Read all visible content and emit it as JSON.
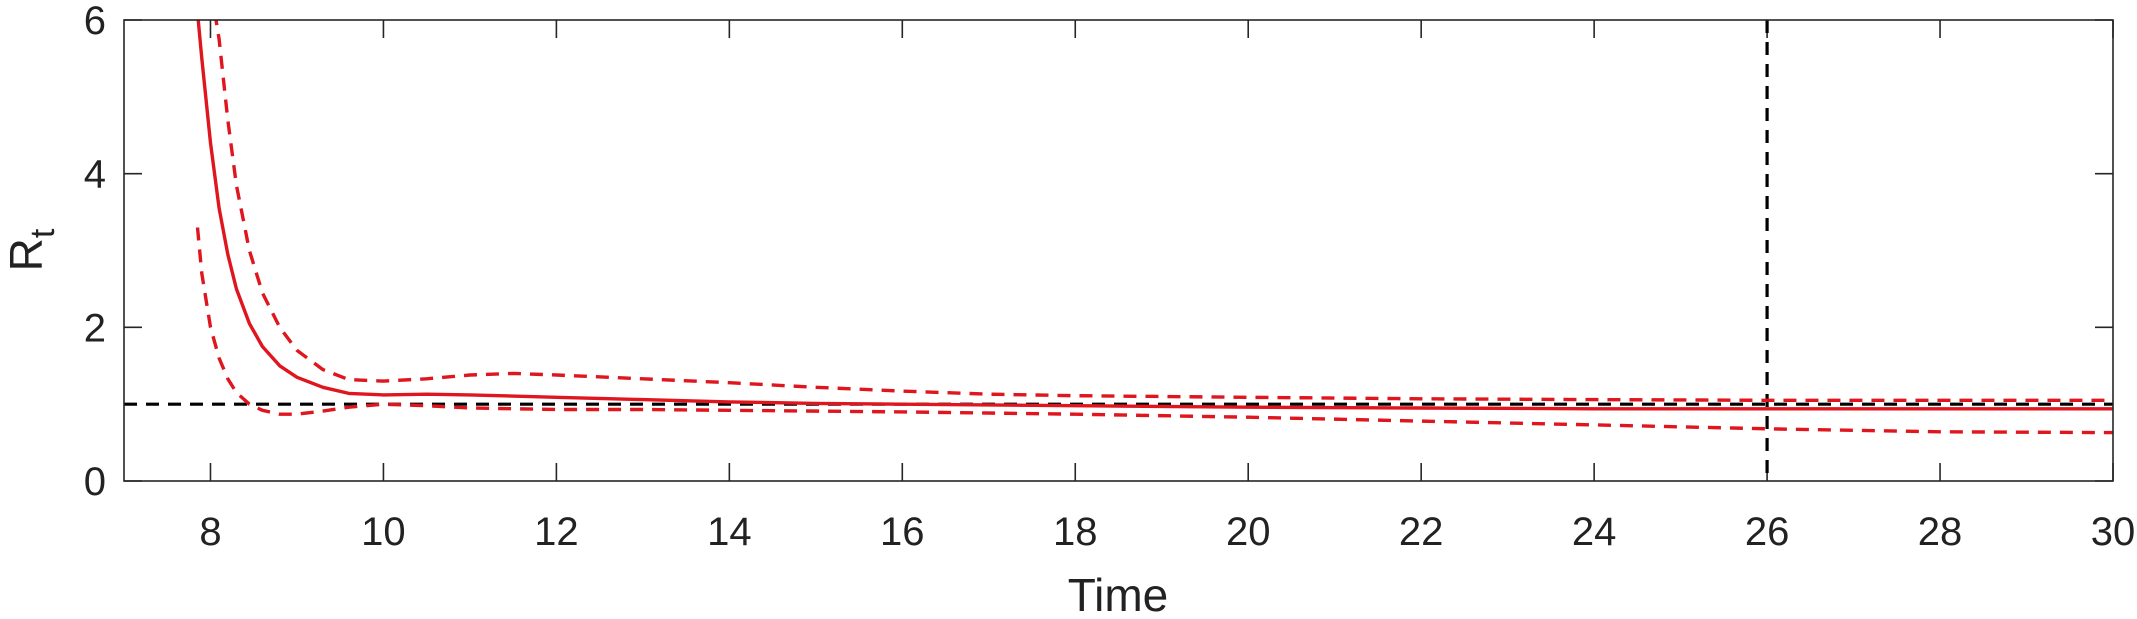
{
  "chart_data": {
    "type": "line",
    "xlabel": "Time",
    "ylabel": "R",
    "ylabel_subscript": "t",
    "xlim": [
      7,
      30
    ],
    "ylim": [
      0,
      6
    ],
    "x_ticks": [
      "8",
      "10",
      "12",
      "14",
      "16",
      "18",
      "20",
      "22",
      "24",
      "26",
      "28",
      "30"
    ],
    "y_ticks": [
      "0",
      "2",
      "4",
      "6"
    ],
    "grid": false,
    "series": [
      {
        "style": "solid",
        "color": "#e0161e",
        "x": [
          7.85,
          7.9,
          8.0,
          8.1,
          8.2,
          8.3,
          8.45,
          8.6,
          8.8,
          9.0,
          9.3,
          9.6,
          10.0,
          10.5,
          11.0,
          12.0,
          13.0,
          14.0,
          15.0,
          16.0,
          18.0,
          20.0,
          22.0,
          24.0,
          26.0,
          28.0,
          30.0
        ],
        "y": [
          6.1,
          5.5,
          4.4,
          3.55,
          2.95,
          2.5,
          2.05,
          1.75,
          1.5,
          1.35,
          1.22,
          1.14,
          1.12,
          1.13,
          1.12,
          1.09,
          1.06,
          1.03,
          1.01,
          1.0,
          0.98,
          0.96,
          0.95,
          0.94,
          0.94,
          0.94,
          0.94
        ]
      },
      {
        "style": "dashed",
        "color": "#e0161e",
        "x": [
          8.05,
          8.1,
          8.2,
          8.3,
          8.45,
          8.6,
          8.8,
          9.0,
          9.3,
          9.6,
          10.0,
          10.5,
          11.0,
          11.5,
          12.0,
          13.0,
          14.0,
          15.0,
          16.0,
          17.0,
          18.0,
          20.0,
          22.0,
          24.0,
          26.0,
          28.0,
          30.0
        ],
        "y": [
          6.1,
          5.75,
          4.7,
          3.85,
          3.0,
          2.45,
          2.0,
          1.7,
          1.45,
          1.32,
          1.3,
          1.33,
          1.38,
          1.4,
          1.38,
          1.33,
          1.28,
          1.22,
          1.17,
          1.13,
          1.11,
          1.09,
          1.07,
          1.06,
          1.05,
          1.05,
          1.05
        ]
      },
      {
        "style": "dashed",
        "color": "#e0161e",
        "x": [
          7.85,
          7.9,
          8.0,
          8.1,
          8.2,
          8.3,
          8.45,
          8.6,
          8.8,
          9.0,
          9.3,
          9.6,
          10.0,
          10.5,
          11.0,
          12.0,
          13.0,
          14.0,
          16.0,
          18.0,
          20.0,
          22.0,
          24.0,
          26.0,
          28.0,
          30.0
        ],
        "y": [
          3.3,
          2.7,
          2.0,
          1.6,
          1.33,
          1.15,
          1.0,
          0.92,
          0.87,
          0.87,
          0.91,
          0.96,
          1.0,
          0.98,
          0.95,
          0.93,
          0.93,
          0.92,
          0.9,
          0.87,
          0.83,
          0.78,
          0.73,
          0.68,
          0.64,
          0.63
        ]
      }
    ],
    "reference_lines": [
      {
        "orientation": "horizontal",
        "value": 1,
        "style": "dashed",
        "color": "#000000"
      },
      {
        "orientation": "vertical",
        "value": 26,
        "style": "dashed",
        "color": "#000000"
      }
    ]
  }
}
